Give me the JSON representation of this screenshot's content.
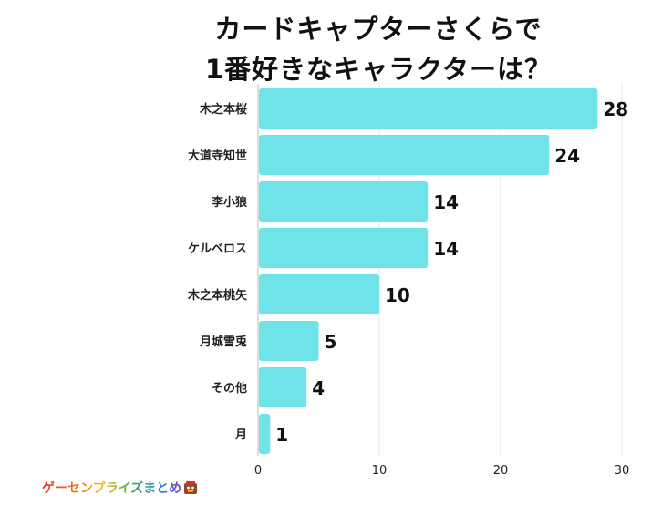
{
  "chart_data": {
    "type": "bar",
    "orientation": "horizontal",
    "title_lines": [
      "カードキャプターさくらで",
      "1番好きなキャラクターは？"
    ],
    "categories": [
      "木之本桜",
      "大道寺知世",
      "李小狼",
      "ケルベロス",
      "木之本桃矢",
      "月城雪兎",
      "その他",
      "月"
    ],
    "values": [
      28,
      24,
      14,
      14,
      10,
      5,
      4,
      1
    ],
    "xlim": [
      0,
      30
    ],
    "xticks": [
      0,
      10,
      20,
      30
    ],
    "xlabel": "",
    "ylabel": "",
    "grid": true,
    "bar_color": "#6ee4e8"
  },
  "branding": {
    "logo_text": "ゲーセンプライズまとめ",
    "logo_icon": "mascot-icon"
  }
}
